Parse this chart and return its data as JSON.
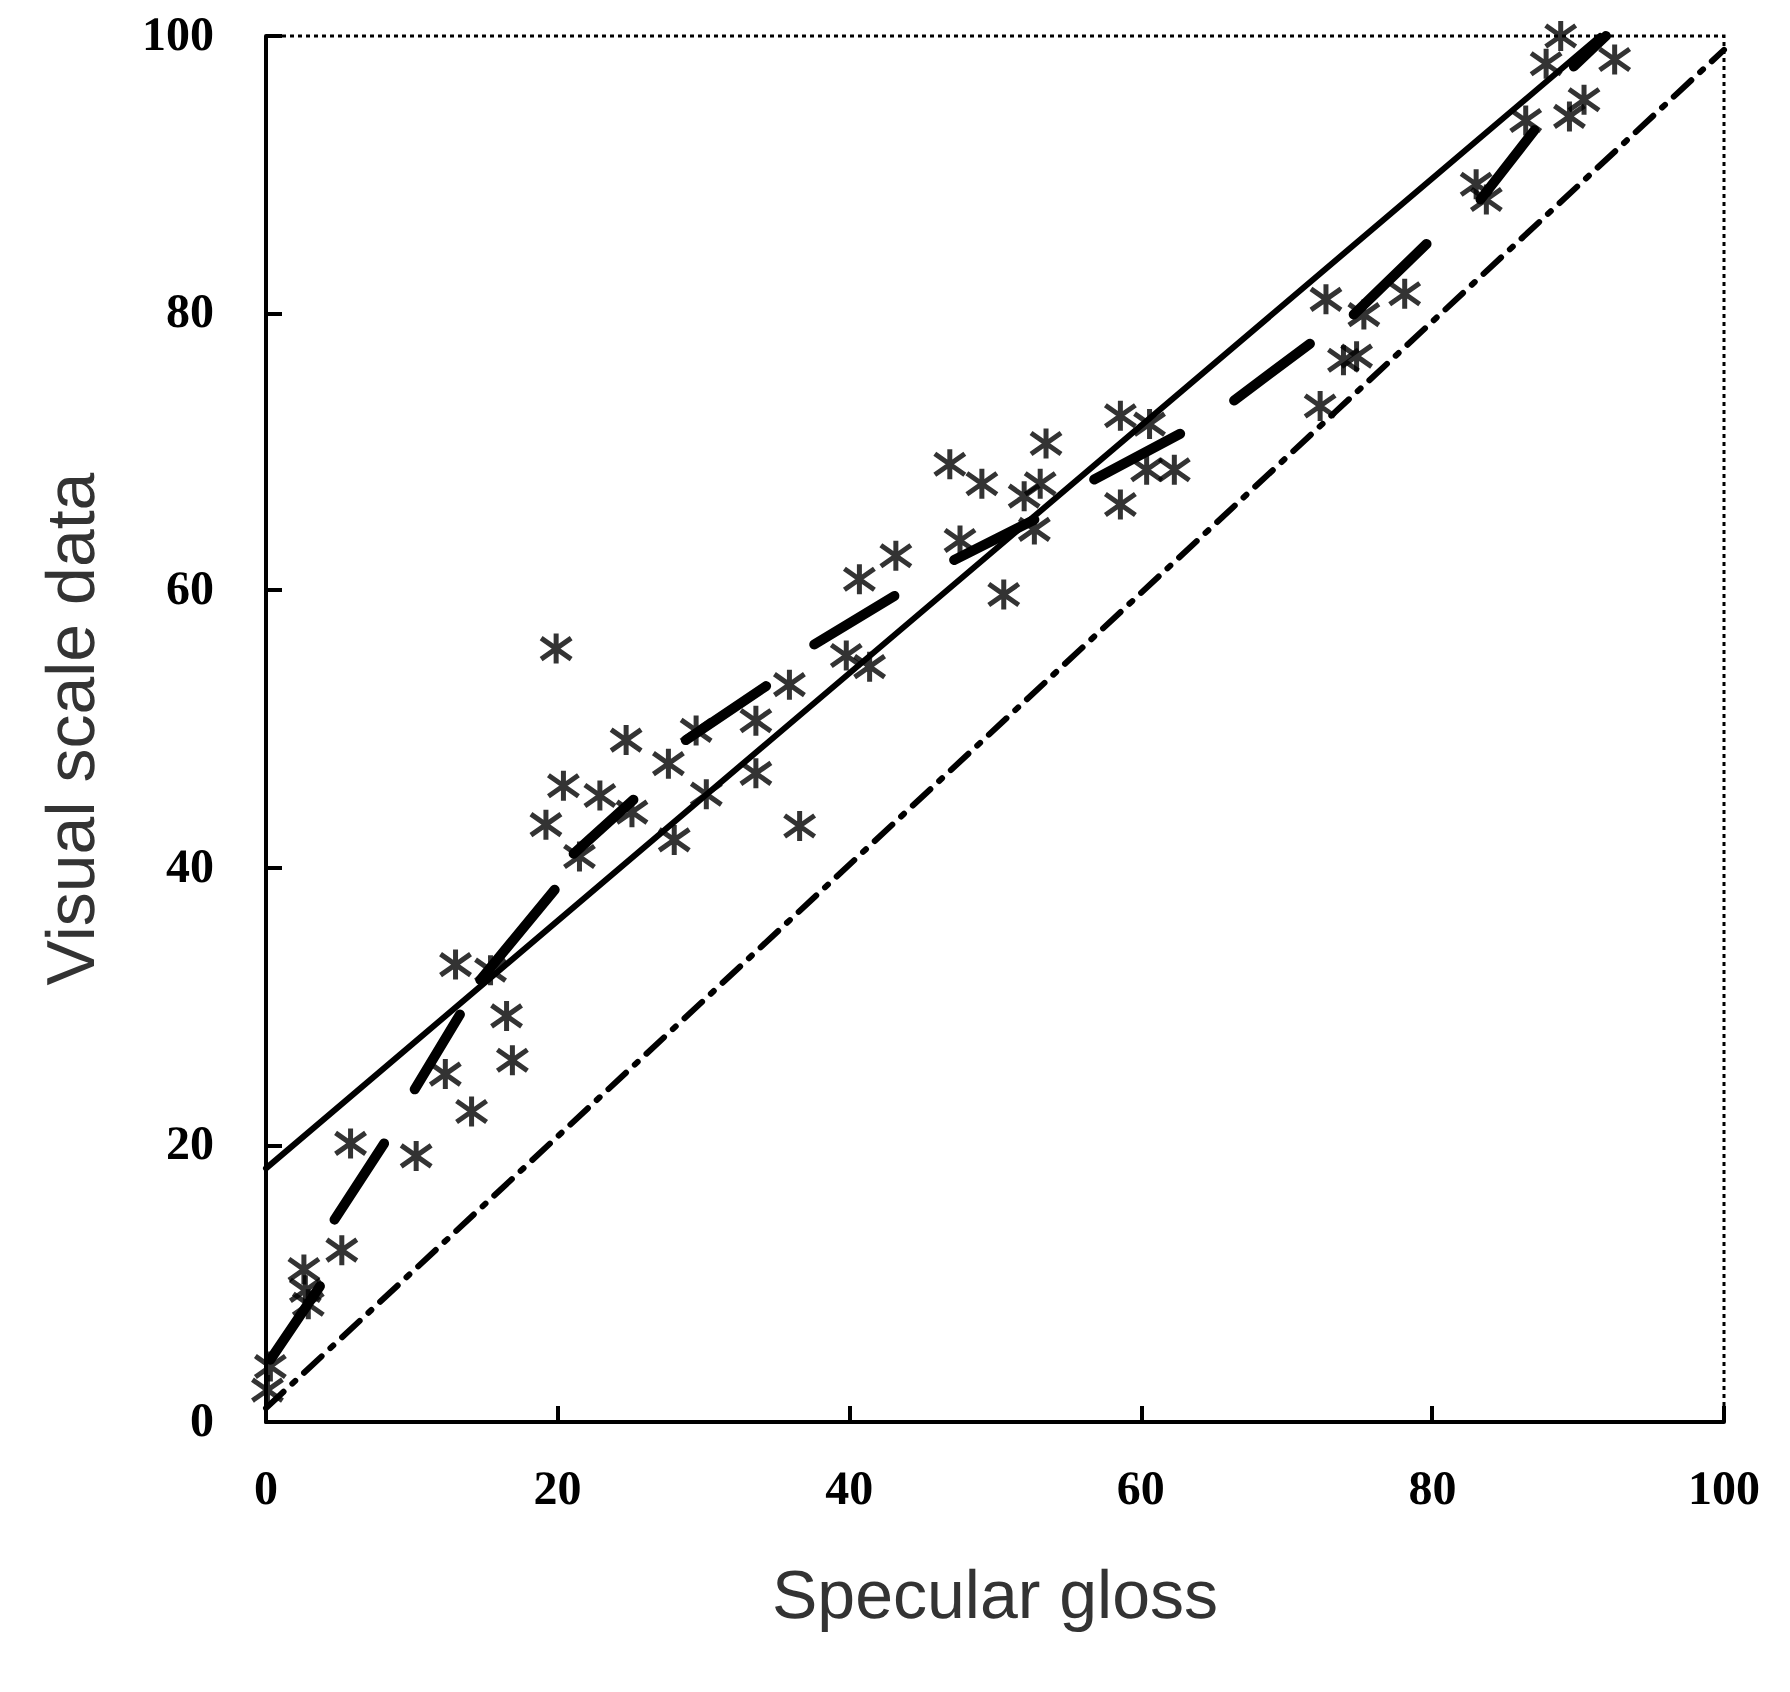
{
  "chart_data": {
    "type": "scatter",
    "xlabel": "Specular gloss",
    "ylabel": "Visual scale data",
    "xlim": [
      0,
      100
    ],
    "ylim": [
      0,
      100
    ],
    "xticks": [
      0,
      20,
      40,
      60,
      80,
      100
    ],
    "yticks": [
      0,
      20,
      40,
      60,
      80,
      100
    ],
    "grid": false,
    "series": [
      {
        "marker": "cross",
        "color": "#000000",
        "x": [
          0.3,
          0.1,
          2.6,
          2.7,
          2.9,
          5.2,
          5.8,
          10.3,
          12.3,
          14.1,
          13.0,
          15.4,
          16.5,
          16.9,
          19.9,
          19.2,
          20.4,
          21.5,
          22.9,
          25.1,
          24.7,
          27.6,
          28.0,
          30.2,
          29.5,
          33.6,
          33.6,
          35.9,
          36.6,
          39.8,
          41.4,
          40.7,
          43.2,
          46.9,
          49.1,
          50.6,
          47.6,
          53.5,
          53.1,
          52.0,
          52.7,
          58.6,
          60.6,
          58.6,
          62.3,
          60.4,
          72.3,
          74.8,
          73.9,
          72.7,
          75.3,
          78.1,
          83.7,
          83.0,
          86.4,
          88.8,
          87.8,
          89.4,
          90.4,
          92.5
        ],
        "values": [
          4.0,
          2.3,
          11.0,
          9.5,
          8.5,
          12.4,
          20.1,
          19.2,
          25.1,
          22.4,
          33.0,
          32.6,
          29.3,
          26.1,
          55.8,
          43.1,
          45.9,
          40.8,
          45.2,
          44.0,
          49.2,
          47.5,
          42.0,
          45.3,
          49.9,
          46.8,
          50.6,
          53.2,
          43.0,
          55.3,
          54.5,
          60.8,
          62.5,
          69.1,
          67.7,
          59.7,
          63.6,
          70.6,
          67.7,
          66.8,
          64.4,
          72.6,
          72.0,
          66.2,
          68.7,
          68.7,
          73.3,
          76.9,
          76.6,
          81.0,
          79.9,
          81.4,
          88.2,
          89.3,
          93.9,
          100,
          98.0,
          94.2,
          95.4,
          98.3
        ]
      },
      {
        "type": "line",
        "marker": "none",
        "line_style": "solid",
        "color": "#000000",
        "x": [
          0,
          91.5
        ],
        "values": [
          18.3,
          100
        ]
      },
      {
        "type": "line",
        "marker": "none",
        "line_style": "dashed",
        "color": "#000000",
        "x": [
          0,
          100
        ],
        "values": [
          1,
          99
        ]
      },
      {
        "type": "line",
        "marker": "none",
        "line_style": "solid",
        "color": "#000000",
        "x": [
          0.3,
          3.7
        ],
        "values": [
          4.5,
          9.8
        ]
      },
      {
        "type": "line",
        "marker": "none",
        "line_style": "solid",
        "color": "#000000",
        "x": [
          4.7,
          8.1
        ],
        "values": [
          14.6,
          20.1
        ]
      },
      {
        "type": "line",
        "marker": "none",
        "line_style": "solid",
        "color": "#000000",
        "x": [
          10.2,
          13.3
        ],
        "values": [
          24.0,
          29.4
        ]
      },
      {
        "type": "line",
        "marker": "none",
        "line_style": "solid",
        "color": "#000000",
        "x": [
          14.7,
          19.8
        ],
        "values": [
          31.9,
          38.4
        ]
      },
      {
        "type": "line",
        "marker": "none",
        "line_style": "solid",
        "color": "#000000",
        "x": [
          21.1,
          25.2
        ],
        "values": [
          41.0,
          44.9
        ]
      },
      {
        "type": "line",
        "marker": "none",
        "line_style": "solid",
        "color": "#000000",
        "x": [
          28.8,
          34.3
        ],
        "values": [
          49.2,
          53.1
        ]
      },
      {
        "type": "line",
        "marker": "none",
        "line_style": "solid",
        "color": "#000000",
        "x": [
          37.6,
          43.1
        ],
        "values": [
          56.1,
          59.6
        ]
      },
      {
        "type": "line",
        "marker": "none",
        "line_style": "solid",
        "color": "#000000",
        "x": [
          47.2,
          52.7
        ],
        "values": [
          62.2,
          65.1
        ]
      },
      {
        "type": "line",
        "marker": "none",
        "line_style": "solid",
        "color": "#000000",
        "x": [
          56.8,
          62.7
        ],
        "values": [
          68.0,
          71.3
        ]
      },
      {
        "type": "line",
        "marker": "none",
        "line_style": "solid",
        "color": "#000000",
        "x": [
          66.4,
          71.6
        ],
        "values": [
          73.7,
          77.8
        ]
      },
      {
        "type": "line",
        "marker": "none",
        "line_style": "solid",
        "color": "#000000",
        "x": [
          74.6,
          79.6
        ],
        "values": [
          79.9,
          85.0
        ]
      },
      {
        "type": "line",
        "marker": "none",
        "line_style": "solid",
        "color": "#000000",
        "x": [
          83.3,
          87.0
        ],
        "values": [
          88.2,
          93.2
        ]
      },
      {
        "type": "line",
        "marker": "none",
        "line_style": "solid",
        "color": "#000000",
        "x": [
          89.7,
          91.9
        ],
        "values": [
          97.8,
          100
        ]
      }
    ]
  }
}
